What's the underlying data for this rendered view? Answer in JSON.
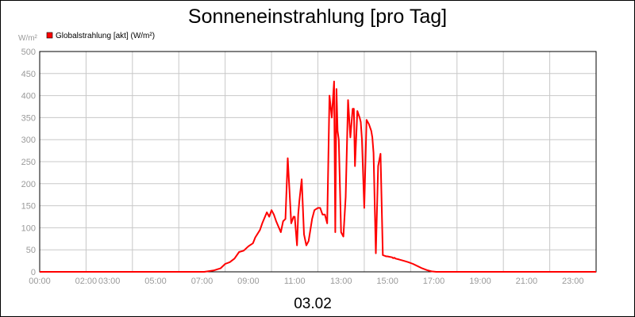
{
  "chart_data": {
    "type": "line",
    "title": "Sonneneinstrahlung [pro Tag]",
    "ylabel": "W/m²",
    "date_label": "03.02",
    "ylim": [
      0,
      500
    ],
    "y_ticks": [
      0,
      50,
      100,
      150,
      200,
      250,
      300,
      350,
      400,
      450,
      500
    ],
    "xlim_hours": [
      0,
      24
    ],
    "x_ticks": [
      {
        "h": 0,
        "label": "00:00"
      },
      {
        "h": 2,
        "label": "02:00"
      },
      {
        "h": 3,
        "label": "03:00"
      },
      {
        "h": 5,
        "label": "05:00"
      },
      {
        "h": 7,
        "label": "07:00"
      },
      {
        "h": 9,
        "label": "09:00"
      },
      {
        "h": 11,
        "label": "11:00"
      },
      {
        "h": 13,
        "label": "13:00"
      },
      {
        "h": 15,
        "label": "15:00"
      },
      {
        "h": 17,
        "label": "17:00"
      },
      {
        "h": 19,
        "label": "19:00"
      },
      {
        "h": 21,
        "label": "21:00"
      },
      {
        "h": 23,
        "label": "23:00"
      }
    ],
    "grid": true,
    "legend": {
      "position": "top-left"
    },
    "series": [
      {
        "name": "Globalstrahlung [akt] (W/m²)",
        "color": "#ff0000",
        "x": [
          0,
          7.1,
          7.5,
          7.8,
          8.0,
          8.2,
          8.4,
          8.6,
          8.8,
          9.0,
          9.2,
          9.3,
          9.5,
          9.6,
          9.8,
          9.9,
          10.0,
          10.1,
          10.2,
          10.4,
          10.5,
          10.6,
          10.7,
          10.85,
          10.95,
          11.0,
          11.1,
          11.15,
          11.2,
          11.3,
          11.4,
          11.5,
          11.6,
          11.75,
          11.85,
          12.0,
          12.1,
          12.2,
          12.3,
          12.4,
          12.5,
          12.6,
          12.7,
          12.75,
          12.8,
          12.85,
          12.9,
          13.0,
          13.1,
          13.2,
          13.3,
          13.4,
          13.5,
          13.55,
          13.6,
          13.7,
          13.8,
          13.85,
          13.9,
          14.0,
          14.1,
          14.2,
          14.3,
          14.35,
          14.4,
          14.5,
          14.6,
          14.7,
          14.8,
          14.9,
          14.95,
          15.0,
          15.1,
          15.2,
          15.25,
          15.3,
          15.35,
          15.5,
          15.7,
          15.9,
          16.1,
          16.3,
          16.5,
          16.7,
          16.9,
          17.1,
          17.3,
          17.5,
          17.7,
          24
        ],
        "y": [
          0,
          0,
          3,
          8,
          18,
          22,
          30,
          45,
          48,
          58,
          65,
          78,
          95,
          110,
          135,
          125,
          140,
          130,
          115,
          90,
          115,
          120,
          258,
          110,
          125,
          125,
          60,
          130,
          160,
          210,
          85,
          60,
          70,
          120,
          140,
          145,
          145,
          130,
          130,
          110,
          400,
          350,
          432,
          90,
          415,
          320,
          300,
          90,
          80,
          170,
          390,
          305,
          370,
          370,
          240,
          365,
          350,
          340,
          300,
          145,
          345,
          335,
          320,
          305,
          270,
          42,
          240,
          268,
          38,
          36,
          35,
          35,
          34,
          33,
          31,
          32,
          30,
          28,
          25,
          22,
          18,
          13,
          8,
          4,
          1,
          0,
          0,
          0,
          0,
          0
        ]
      }
    ]
  }
}
